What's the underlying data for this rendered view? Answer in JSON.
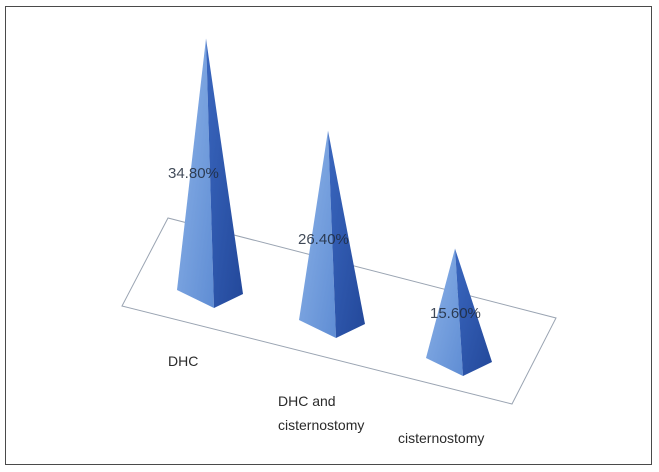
{
  "chart_data": {
    "type": "bar",
    "style": "3d-pyramid",
    "title": "",
    "xlabel": "",
    "ylabel": "",
    "categories": [
      "DHC",
      "DHC and cisternostomy",
      "cisternostomy"
    ],
    "category_lines": [
      [
        "DHC"
      ],
      [
        "DHC and",
        "cisternostomy"
      ],
      [
        "cisternostomy"
      ]
    ],
    "values": [
      34.8,
      26.4,
      15.6
    ],
    "value_labels": [
      "34.80%",
      "26.40%",
      "15.60%"
    ],
    "unit": "%",
    "ylim": [
      0,
      40
    ],
    "grid": false,
    "legend": "none",
    "colors": {
      "light_face": "#7aa3df",
      "dark_face": "#2f5cb5",
      "front_face": "#5d8ad2",
      "floor_line": "#9aa4b2"
    }
  }
}
